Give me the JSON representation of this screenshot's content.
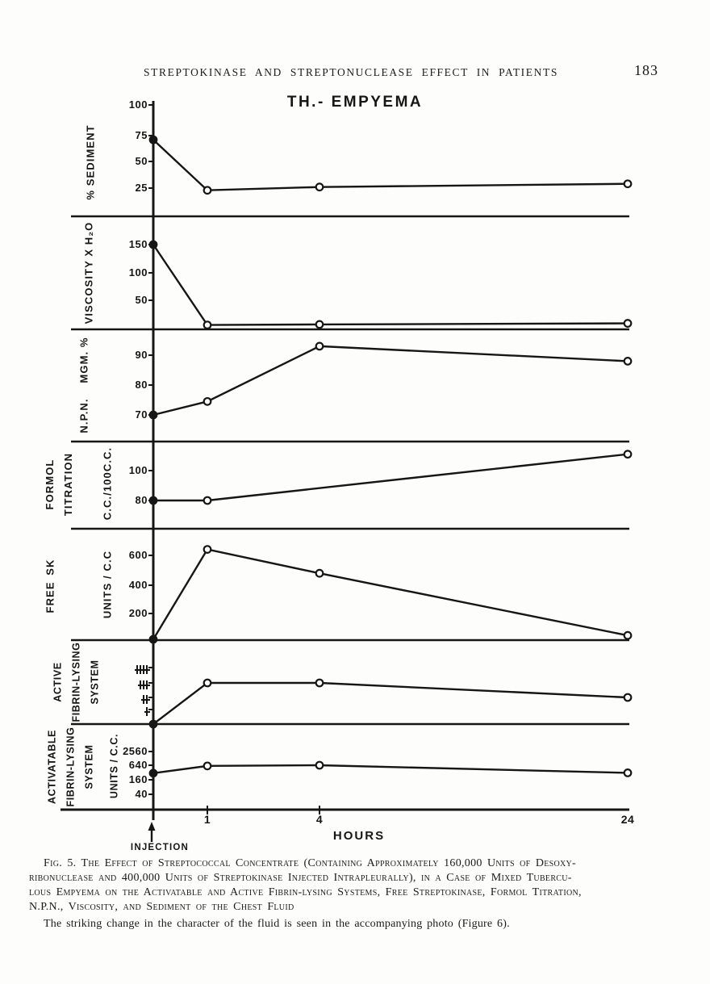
{
  "header": {
    "title": "STREPTOKINASE AND STREPTONUCLEASE EFFECT IN PATIENTS",
    "page_number": "183"
  },
  "figure": {
    "title": "TH.- EMPYEMA",
    "x_axis": {
      "label": "HOURS",
      "tick_labels": [
        "1",
        "4",
        "24"
      ],
      "injection_label": "INJECTION"
    }
  },
  "chart_data": {
    "type": "line",
    "title": "TH.- EMPYEMA",
    "xlabel": "HOURS",
    "x_hours": [
      0,
      1,
      4,
      24
    ],
    "x_note": "non-linear hour axis; streptococcal concentrate injection at hour 0 (filled marker); other points open circles",
    "ink_color": "#161616",
    "panels": [
      {
        "name": "% SEDIMENT",
        "label_lines": [
          "% SEDIMENT"
        ],
        "unit_lines": [],
        "scale": "linear",
        "yticks": [
          100,
          75,
          50,
          25
        ],
        "values": [
          71,
          23,
          26,
          29
        ]
      },
      {
        "name": "VISCOSITY X H2O",
        "label_lines": [
          "VISCOSITY X H₂O"
        ],
        "unit_lines": [],
        "scale": "linear",
        "yticks": [
          150,
          100,
          50
        ],
        "values": [
          150,
          5,
          6,
          8
        ]
      },
      {
        "name": "N.P.N. MGM.%",
        "label_lines": [
          "N.P.N.  MGM. %"
        ],
        "unit_lines": [],
        "scale": "linear",
        "yticks": [
          90,
          80,
          70
        ],
        "values": [
          70,
          74.5,
          93,
          88
        ]
      },
      {
        "name": "FORMOL TITRATION C.C./100C.C.",
        "label_lines": [
          "FORMOL",
          "TITRATION"
        ],
        "unit_lines": [
          "C.C./100C.C."
        ],
        "scale": "linear",
        "yticks": [
          100,
          80
        ],
        "x_hours": [
          0,
          1,
          24
        ],
        "values": [
          80,
          80,
          111
        ]
      },
      {
        "name": "FREE SK UNITS/C.C",
        "label_lines": [
          "FREE SK"
        ],
        "unit_lines": [
          "UNITS / C.C"
        ],
        "scale": "linear",
        "yticks": [
          600,
          400,
          200
        ],
        "values": [
          0,
          640,
          480,
          30
        ]
      },
      {
        "name": "ACTIVE FIBRIN-LYSING SYSTEM",
        "label_lines": [
          "ACTIVE",
          "FIBRIN-LYSING",
          "SYSTEM"
        ],
        "unit_lines": [],
        "scale": "ordinal",
        "yticks": [
          "++++",
          "+++",
          "++",
          "+"
        ],
        "values": [
          0,
          3,
          3,
          2
        ],
        "values_label": [
          "0",
          "+++",
          "+++",
          "++"
        ]
      },
      {
        "name": "ACTIVATABLE FIBRIN-LYSING SYSTEM UNITS/C.C.",
        "label_lines": [
          "ACTIVATABLE",
          "FIBRIN-LYSING",
          "SYSTEM"
        ],
        "unit_lines": [
          "UNITS / C.C."
        ],
        "scale": "log4",
        "yticks": [
          2560,
          640,
          160,
          40
        ],
        "values": [
          300,
          600,
          640,
          310
        ]
      }
    ]
  },
  "caption": {
    "lines": [
      "Fig. 5. The Effect of Streptococcal Concentrate (Containing Approximately 160,000 Units of Desoxy-",
      "ribonuclease and 400,000 Units of Streptokinase Injected Intrapleurally), in a Case of Mixed Tubercu-",
      "lous Empyema on the Activatable and Active Fibrin-lysing Systems, Free Streptokinase, Formol Titration,",
      "N.P.N., Viscosity, and Sediment of the Chest Fluid"
    ],
    "note": "The striking change in the character of the fluid is seen in the accompanying photo (Figure 6)."
  }
}
